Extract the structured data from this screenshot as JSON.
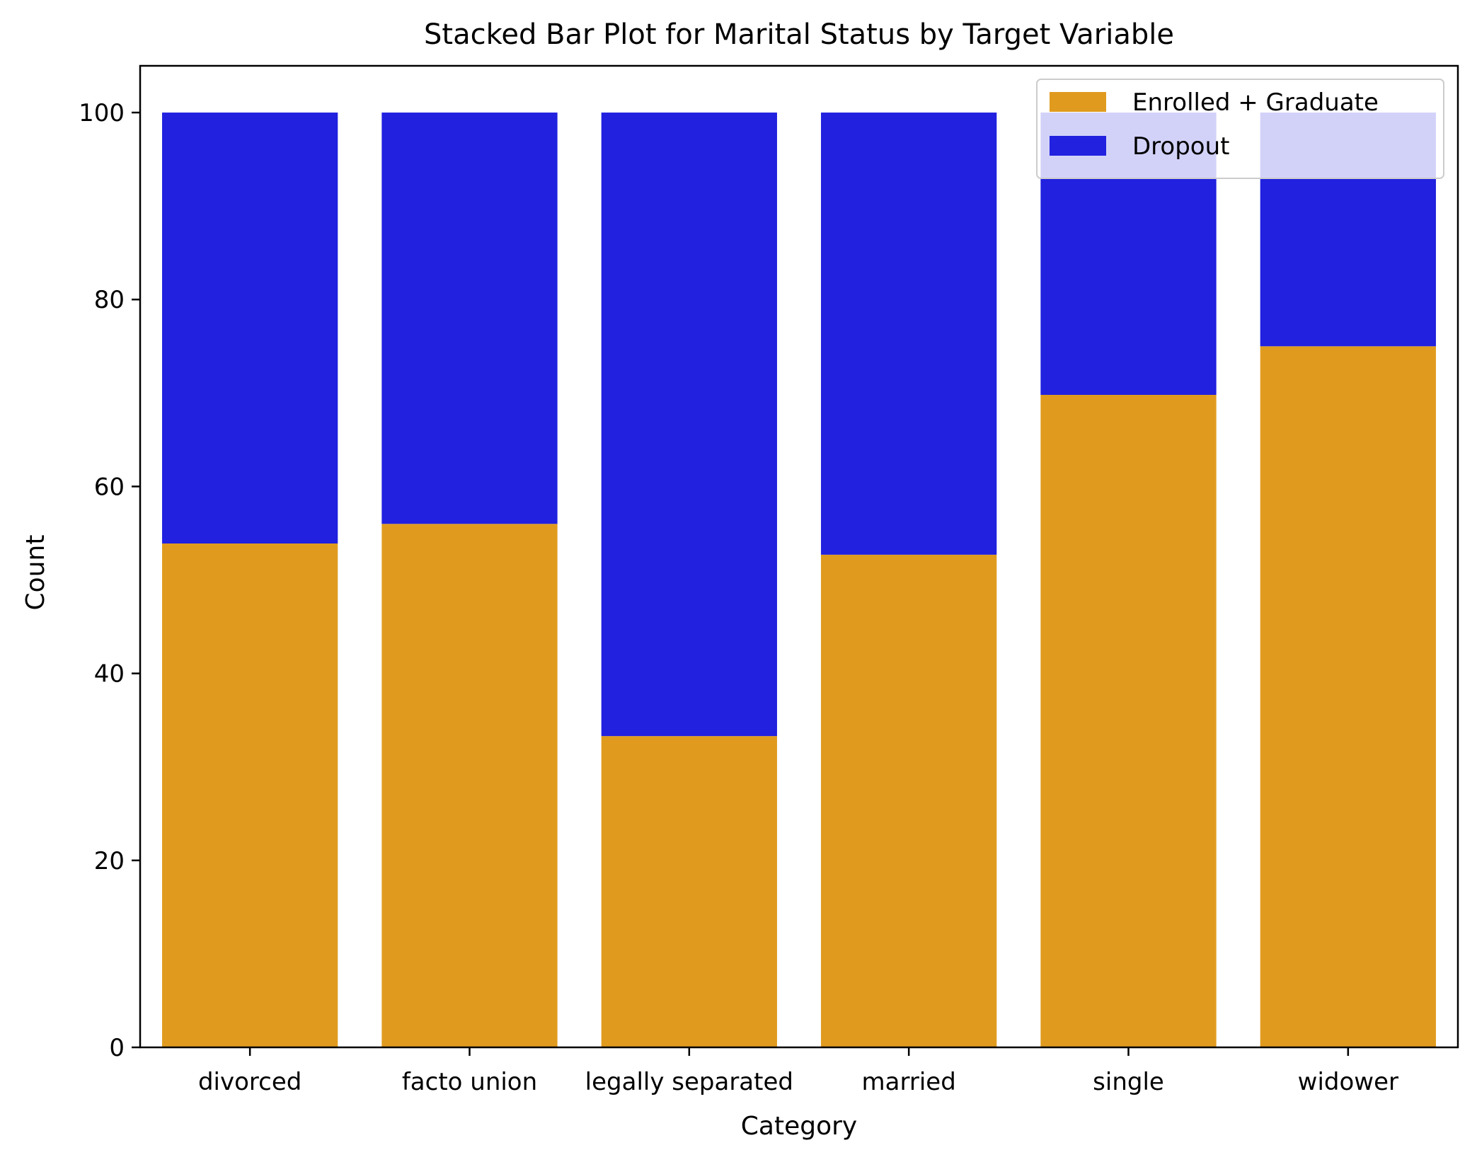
{
  "chart_data": {
    "type": "bar",
    "stacked": true,
    "title": "Stacked Bar Plot for Marital Status by Target Variable",
    "xlabel": "Category",
    "ylabel": "Count",
    "ylim": [
      0,
      105
    ],
    "yticks": [
      0,
      20,
      40,
      60,
      80,
      100
    ],
    "grid": false,
    "legend_position": "top-right",
    "categories": [
      "divorced",
      "facto union",
      "legally separated",
      "married",
      "single",
      "widower"
    ],
    "series": [
      {
        "name": "Enrolled + Graduate",
        "color": "#e09b1f",
        "values": [
          53.9,
          56.0,
          33.3,
          52.7,
          69.8,
          75.0
        ]
      },
      {
        "name": "Dropout",
        "color": "#2121df",
        "values": [
          46.1,
          44.0,
          66.7,
          47.3,
          30.2,
          25.0
        ]
      }
    ]
  }
}
